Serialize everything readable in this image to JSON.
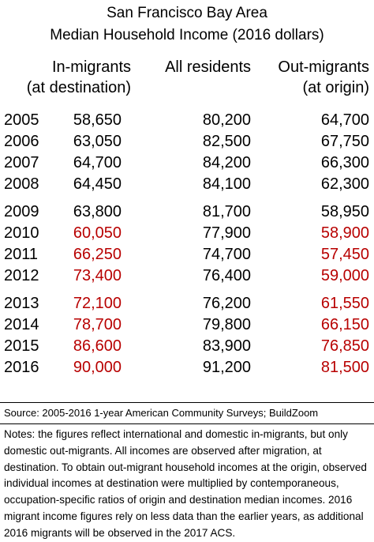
{
  "title_line1": "San Francisco Bay Area",
  "title_line2": "Median Household Income (2016 dollars)",
  "headers": {
    "in_line1": "In-migrants",
    "in_line2": "(at destination)",
    "all": "All residents",
    "out_line1": "Out-migrants",
    "out_line2": "(at origin)"
  },
  "chart_data": {
    "type": "table",
    "title": "San Francisco Bay Area Median Household Income (2016 dollars)",
    "columns": [
      "In-migrants (at destination)",
      "All residents",
      "Out-migrants (at origin)"
    ],
    "rows": [
      {
        "year": "2005",
        "in": "58,650",
        "all": "80,200",
        "out": "64,700",
        "in_red": false,
        "out_red": false
      },
      {
        "year": "2006",
        "in": "63,050",
        "all": "82,500",
        "out": "67,750",
        "in_red": false,
        "out_red": false
      },
      {
        "year": "2007",
        "in": "64,700",
        "all": "84,200",
        "out": "66,300",
        "in_red": false,
        "out_red": false
      },
      {
        "year": "2008",
        "in": "64,450",
        "all": "84,100",
        "out": "62,300",
        "in_red": false,
        "out_red": false
      },
      {
        "year": "2009",
        "in": "63,800",
        "all": "81,700",
        "out": "58,950",
        "in_red": false,
        "out_red": false
      },
      {
        "year": "2010",
        "in": "60,050",
        "all": "77,900",
        "out": "58,900",
        "in_red": true,
        "out_red": true
      },
      {
        "year": "2011",
        "in": "66,250",
        "all": "74,700",
        "out": "57,450",
        "in_red": true,
        "out_red": true
      },
      {
        "year": "2012",
        "in": "73,400",
        "all": "76,400",
        "out": "59,000",
        "in_red": true,
        "out_red": true
      },
      {
        "year": "2013",
        "in": "72,100",
        "all": "76,200",
        "out": "61,550",
        "in_red": true,
        "out_red": true
      },
      {
        "year": "2014",
        "in": "78,700",
        "all": "79,800",
        "out": "66,150",
        "in_red": true,
        "out_red": true
      },
      {
        "year": "2015",
        "in": "86,600",
        "all": "83,900",
        "out": "76,850",
        "in_red": true,
        "out_red": true
      },
      {
        "year": "2016",
        "in": "90,000",
        "all": "91,200",
        "out": "81,500",
        "in_red": true,
        "out_red": true
      }
    ]
  },
  "colors": {
    "highlight": "#b80000",
    "text": "#000000"
  },
  "source": "Source: 2005-2016 1-year American Community Surveys; BuildZoom",
  "notes": "Notes: the figures reflect international and domestic in-migrants, but only domestic out-migrants. All incomes are observed after migration, at destination. To obtain out-migrant household incomes at the origin, observed individual incomes at destination were multiplied by contemporaneous, occupation-specific ratios of origin and destination median incomes. 2016 migrant income figures rely on less data than the earlier years, as additional 2016 migrants will be observed in the 2017 ACS."
}
